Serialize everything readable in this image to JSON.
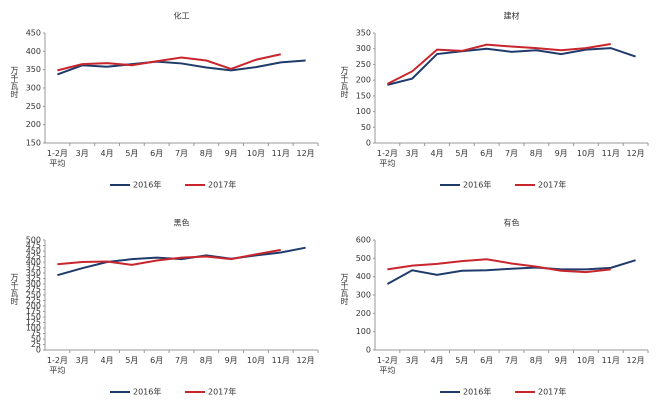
{
  "chart_data": [
    {
      "type": "line",
      "title": "化工",
      "y_label": "万千瓦时",
      "categories": [
        "1-2月\n平均",
        "3月",
        "4月",
        "5月",
        "6月",
        "7月",
        "8月",
        "9月",
        "10月",
        "11月",
        "12月"
      ],
      "series": [
        {
          "name": "2016年",
          "color": "#1f3b6b",
          "values": [
            337,
            362,
            358,
            365,
            372,
            367,
            356,
            348,
            357,
            370,
            375
          ]
        },
        {
          "name": "2017年",
          "color": "#c8262c",
          "values": [
            348,
            365,
            368,
            362,
            373,
            383,
            375,
            352,
            377,
            392,
            null
          ]
        }
      ],
      "ylim": [
        150,
        450
      ],
      "yticks": [
        150,
        200,
        250,
        300,
        350,
        400,
        450
      ]
    },
    {
      "type": "line",
      "title": "建材",
      "y_label": "万千瓦时",
      "categories": [
        "1-2月\n平均",
        "3月",
        "4月",
        "5月",
        "6月",
        "7月",
        "8月",
        "9月",
        "10月",
        "11月",
        "12月"
      ],
      "series": [
        {
          "name": "2016年",
          "color": "#1f3b6b",
          "values": [
            185,
            205,
            283,
            292,
            300,
            290,
            295,
            283,
            297,
            302,
            275
          ]
        },
        {
          "name": "2017年",
          "color": "#c8262c",
          "values": [
            188,
            228,
            297,
            293,
            313,
            307,
            302,
            295,
            302,
            315,
            null
          ]
        }
      ],
      "ylim": [
        0,
        350
      ],
      "yticks": [
        0,
        50,
        100,
        150,
        200,
        250,
        300,
        350
      ]
    },
    {
      "type": "line",
      "title": "黑色",
      "y_label": "万千瓦时",
      "categories": [
        "1-2月\n平均",
        "3月",
        "4月",
        "5月",
        "6月",
        "7月",
        "8月",
        "9月",
        "10月",
        "11月",
        "12月"
      ],
      "series": [
        {
          "name": "2016年",
          "color": "#1f3b6b",
          "values": [
            340,
            372,
            400,
            413,
            420,
            413,
            430,
            415,
            430,
            443,
            465
          ]
        },
        {
          "name": "2017年",
          "color": "#c8262c",
          "values": [
            390,
            400,
            402,
            387,
            407,
            420,
            425,
            413,
            435,
            455,
            null
          ]
        }
      ],
      "ylim": [
        0,
        500
      ],
      "yticks": [
        0,
        25,
        50,
        75,
        100,
        125,
        150,
        175,
        200,
        225,
        250,
        275,
        300,
        325,
        350,
        375,
        400,
        425,
        450,
        475,
        500
      ]
    },
    {
      "type": "line",
      "title": "有色",
      "y_label": "万千瓦时",
      "categories": [
        "1-2月\n平均",
        "3月",
        "4月",
        "5月",
        "6月",
        "7月",
        "8月",
        "9月",
        "10月",
        "11月",
        "12月"
      ],
      "series": [
        {
          "name": "2016年",
          "color": "#1f3b6b",
          "values": [
            360,
            435,
            410,
            432,
            435,
            443,
            450,
            440,
            440,
            448,
            490
          ]
        },
        {
          "name": "2017年",
          "color": "#c8262c",
          "values": [
            440,
            460,
            470,
            485,
            495,
            472,
            455,
            432,
            425,
            440,
            null
          ]
        }
      ],
      "ylim": [
        0,
        600
      ],
      "yticks": [
        0,
        100,
        200,
        300,
        400,
        500,
        600
      ]
    }
  ]
}
